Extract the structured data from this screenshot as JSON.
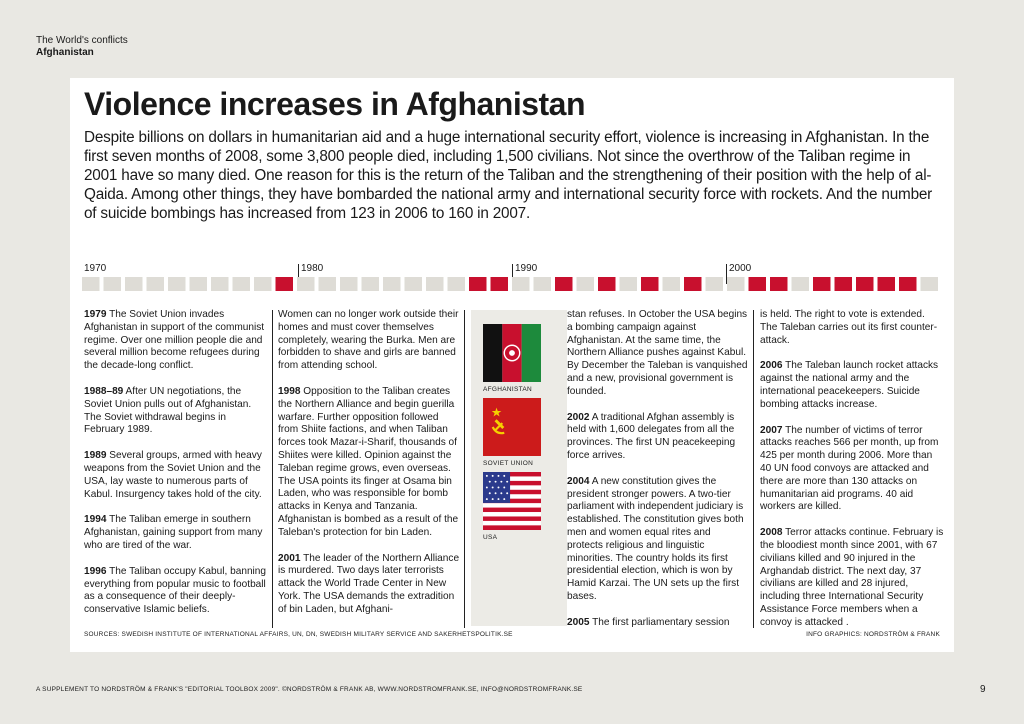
{
  "header": {
    "section": "The World's conflicts",
    "subsection": "Afghanistan"
  },
  "article": {
    "title": "Violence increases in Afghanistan",
    "lead": "Despite billions on dollars in humanitarian aid and a huge international security effort, violence is increasing in Afghanistan. In the first seven months of 2008, some 3,800 people died, including 1,500 civilians. Not since the overthrow of the Taliban regime in 2001 have so many died. One reason for this is the return of the Taliban and the strengthening of their position with the help of al-Qaida. Among other things, they have bombarded the national army and international security force with rockets. And the number of suicide bombings has increased from 123 in 2006 to 160 in 2007."
  },
  "timeline": {
    "labels": [
      "1970",
      "1980",
      "1990",
      "2000"
    ],
    "colors": {
      "event": "#c8102e",
      "empty": "#dedcd6",
      "gap": "#ffffff"
    },
    "highlighted_years": [
      1979,
      1988,
      1989,
      1992,
      1994,
      1996,
      1998,
      2001,
      2002,
      2004,
      2005,
      2006,
      2007,
      2008
    ]
  },
  "entries": {
    "e1979": {
      "year": "1979",
      "text": " The Soviet Union invades Afghanistan in support of the communist regime. Over one million people die and several million become refugees during the decade-long conflict."
    },
    "e1988": {
      "year": "1988–89",
      "text": " After UN negotiations, the Soviet Union pulls out of Afghanistan. The Soviet withdrawal begins in February 1989."
    },
    "e1989": {
      "year": "1989",
      "text": " Several groups, armed with heavy weapons from the Soviet Union and the USA, lay waste to numerous parts of Kabul. Insurgency takes hold of the city."
    },
    "e1994": {
      "year": "1994",
      "text": " The Taliban emerge in southern Afghanistan, gaining support from many who are tired of the war."
    },
    "e1996": {
      "year": "1996",
      "text": " The Taliban occupy Kabul, banning everything from popular music to football as a consequence of their deeply-conservative Islamic beliefs."
    },
    "c2_intro": "Women can no longer work outside their homes and must cover themselves completely, wearing the Burka. Men are forbidden to shave and girls are banned from attending school.",
    "e1998": {
      "year": "1998",
      "text": " Opposition to the Taliban creates the Northern Alliance and begin guerilla warfare. Further opposition followed from Shiite factions, and when Taliban forces took Mazar-i-Sharif, thousands of Shiites were killed. Opinion against the Taleban regime grows, even overseas. The USA points its finger at Osama bin Laden, who was responsible for bomb attacks in Kenya and Tanzania. Afghanistan is bombed as a result of the Taleban's protection for bin Laden."
    },
    "e2001": {
      "year": "2001",
      "text": " The leader of the Northern Alliance is murdered. Two days later terrorists attack the World Trade Center in New York. The USA demands the extradition of bin Laden, but Afghani-"
    },
    "c3_intro": "stan refuses. In October the USA begins a bombing campaign against Afghanistan. At the same time, the Northern Alliance pushes against Kabul. By December the Taleban is vanquished and a new, provisional government is founded.",
    "e2002": {
      "year": "2002",
      "text": " A traditional Afghan assembly is held with 1,600 delegates from all the provinces. The first UN peacekeeping force arrives."
    },
    "e2004": {
      "year": "2004",
      "text": " A new constitution gives the president stronger powers. A two-tier parliament with independent judiciary is established. The constitution gives both men and women equal rites and protects religious and linguistic minorities. The country holds its first presidential election, which is won by Hamid Karzai. The UN sets up the first bases."
    },
    "e2005": {
      "year": "2005",
      "text": " The first parliamentary session"
    },
    "c4_intro": "is held. The right to vote is extended. The Taleban carries out its first counter-attack.",
    "e2006": {
      "year": "2006",
      "text": " The Taleban launch rocket attacks against the national army and the international peacekeepers. Suicide bombing attacks increase."
    },
    "e2007": {
      "year": "2007",
      "text": " The number of victims of terror attacks reaches 566 per month, up from 425 per month during 2006. More than 40 UN food convoys are attacked and there are more than 130 attacks on humanitarian aid programs. 40 aid workers are killed."
    },
    "e2008": {
      "year": "2008",
      "text": " Terror attacks continue. February is the bloodiest month since 2001, with 67 civilians killed and 90 injured in the Arghandab district. The next day, 37 civilians are killed and 28 injured, including three International Security Assistance Force members when a convoy is attacked ."
    }
  },
  "flags": {
    "afghanistan": "AFGHANISTAN",
    "soviet": "SOVIET UNION",
    "usa": "USA"
  },
  "sources": "SOURCES: SWEDISH INSTITUTE OF INTERNATIONAL AFFAIRS, UN, DN, SWEDISH MILITARY SERVICE AND SAKERHETSPOLITIK.SE",
  "credit": "INFO GRAPHICS: NORDSTRÖM & FRANK",
  "footer": "A SUPPLEMENT TO NORDSTRÖM & FRANK'S \"EDITORIAL TOOLBOX 2009\". ©NORDSTRÖM & FRANK AB, WWW.NORDSTROMFRANK.SE, INFO@NORDSTROMFRANK.SE",
  "page_number": "9"
}
